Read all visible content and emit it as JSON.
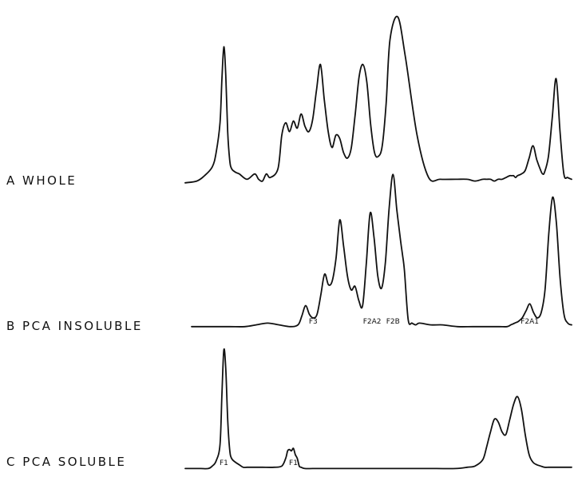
{
  "chart_data": [
    {
      "type": "line",
      "name": "A WHOLE",
      "label": "A WHOLE",
      "color": "#111111",
      "x_range": [
        0,
        100
      ],
      "y_range": [
        0,
        100
      ],
      "x": [
        0,
        3,
        5,
        7,
        8,
        9,
        9.5,
        10,
        10.5,
        11,
        11.5,
        12,
        13,
        14,
        16,
        18,
        19,
        20,
        21,
        22,
        24,
        25,
        26,
        27,
        28,
        29,
        30,
        31,
        32,
        33,
        34,
        35,
        36,
        37,
        38,
        39,
        40,
        41,
        42,
        43,
        44,
        45,
        46,
        47,
        48,
        49,
        50,
        51,
        52,
        53,
        55,
        57,
        60,
        63,
        66,
        70,
        73,
        75,
        77,
        78,
        79,
        80,
        81,
        82,
        83,
        84,
        84.5,
        85,
        85.5,
        86,
        87,
        88,
        89,
        90,
        91,
        92,
        92.5,
        93,
        94,
        95,
        96,
        97,
        98,
        99,
        100
      ],
      "y": [
        1,
        2,
        5,
        10,
        18,
        35,
        60,
        78,
        62,
        30,
        14,
        9,
        7,
        6,
        3,
        6,
        3,
        2,
        6,
        4,
        9,
        28,
        35,
        30,
        36,
        32,
        40,
        33,
        30,
        37,
        54,
        68,
        48,
        30,
        21,
        28,
        26,
        18,
        15,
        21,
        40,
        61,
        68,
        58,
        34,
        18,
        16,
        22,
        46,
        82,
        95,
        72,
        28,
        4,
        3,
        3,
        3,
        2,
        3,
        3,
        3,
        2,
        3,
        3,
        4,
        5,
        5,
        5,
        4,
        5,
        6,
        8,
        15,
        22,
        14,
        8,
        6,
        7,
        16,
        38,
        60,
        30,
        6,
        4,
        3
      ],
      "annotations": []
    },
    {
      "type": "line",
      "name": "B PCA INSOLUBLE",
      "label": "B PCA INSOLUBLE",
      "color": "#111111",
      "x_range": [
        0,
        100
      ],
      "y_range": [
        0,
        100
      ],
      "x": [
        0,
        5,
        10,
        14,
        17,
        20,
        23,
        26,
        28,
        29,
        30,
        31,
        32,
        33,
        34,
        35,
        36,
        37,
        38,
        39,
        40,
        41,
        42,
        43,
        44,
        45,
        46,
        47,
        48,
        49,
        50,
        51,
        52,
        53,
        54,
        55,
        55.5,
        56,
        57,
        58,
        59,
        60,
        63,
        66,
        70,
        74,
        78,
        81,
        83,
        84,
        85,
        86,
        87,
        88,
        89,
        90,
        91,
        92,
        93,
        94,
        95,
        96,
        97,
        98,
        99,
        100
      ],
      "y": [
        1,
        1,
        1,
        1,
        2,
        3,
        2,
        1,
        2,
        7,
        13,
        8,
        6,
        8,
        19,
        31,
        25,
        27,
        40,
        62,
        47,
        30,
        22,
        24,
        16,
        13,
        38,
        66,
        52,
        30,
        23,
        38,
        69,
        88,
        68,
        50,
        42,
        33,
        5,
        3,
        2,
        3,
        2,
        2,
        1,
        1,
        1,
        1,
        1,
        2,
        3,
        4,
        6,
        10,
        14,
        9,
        6,
        9,
        22,
        54,
        75,
        60,
        28,
        8,
        3,
        2
      ],
      "annotations": [
        {
          "text": "F3",
          "x": 32
        },
        {
          "text": "F2A2",
          "x": 47.5
        },
        {
          "text": "F2B",
          "x": 53
        },
        {
          "text": "F2A1",
          "x": 89
        }
      ]
    },
    {
      "type": "line",
      "name": "C PCA SOLUBLE",
      "label": "C PCA SOLUBLE",
      "color": "#111111",
      "x_range": [
        0,
        100
      ],
      "y_range": [
        0,
        100
      ],
      "x": [
        0,
        2,
        4,
        6,
        7,
        8,
        9,
        9.5,
        10,
        10.5,
        11,
        11.5,
        12,
        13,
        14,
        15,
        16,
        18,
        20,
        23,
        25,
        26,
        26.5,
        27,
        27.5,
        28,
        28.5,
        29,
        29.5,
        30,
        31,
        33,
        36,
        40,
        45,
        50,
        55,
        60,
        65,
        70,
        73,
        75,
        77,
        78,
        79,
        80,
        81,
        82,
        83,
        84,
        85,
        86,
        87,
        88,
        89,
        90,
        91,
        92,
        93,
        94,
        95,
        96,
        97,
        98,
        99,
        100
      ],
      "y": [
        1,
        1,
        1,
        1,
        3,
        7,
        20,
        60,
        95,
        80,
        40,
        16,
        9,
        6,
        4,
        2,
        2,
        2,
        2,
        2,
        3,
        9,
        15,
        16,
        15,
        17,
        12,
        9,
        3,
        2,
        1,
        1,
        1,
        1,
        1,
        1,
        1,
        1,
        1,
        1,
        2,
        3,
        8,
        18,
        30,
        40,
        38,
        30,
        28,
        40,
        52,
        58,
        48,
        28,
        12,
        6,
        4,
        3,
        2,
        2,
        2,
        2,
        2,
        2,
        2,
        2
      ],
      "annotations": [
        {
          "text": "F1",
          "x": 10
        },
        {
          "text": "F1",
          "x": 28
        }
      ]
    }
  ]
}
